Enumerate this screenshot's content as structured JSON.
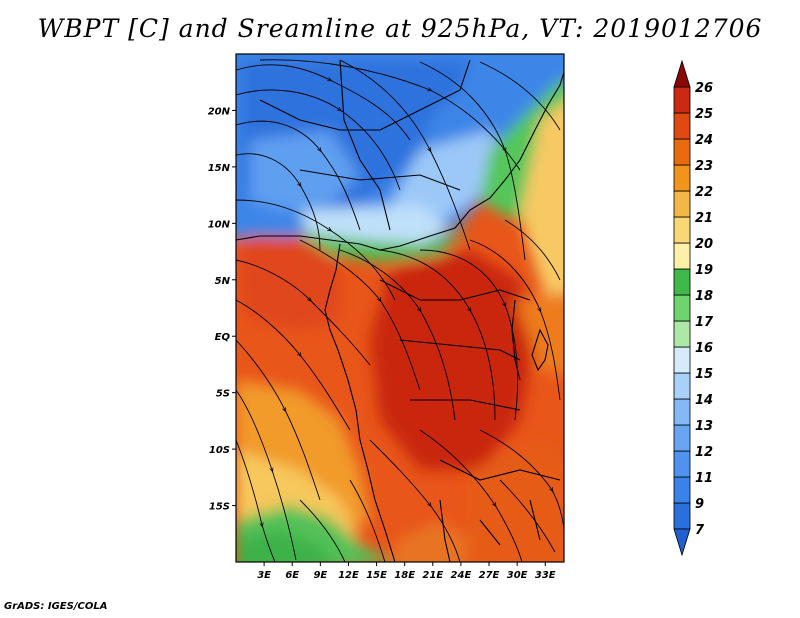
{
  "title": "WBPT [C] and Sreamline at 925hPa, VT: 2019012706",
  "credit": "GrADS: IGES/COLA",
  "map": {
    "lon_range": [
      0,
      35
    ],
    "lat_range": [
      -20,
      25
    ],
    "lon_ticks": [
      {
        "value": 3,
        "label": "3E"
      },
      {
        "value": 6,
        "label": "6E"
      },
      {
        "value": 9,
        "label": "9E"
      },
      {
        "value": 12,
        "label": "12E"
      },
      {
        "value": 15,
        "label": "15E"
      },
      {
        "value": 18,
        "label": "18E"
      },
      {
        "value": 21,
        "label": "21E"
      },
      {
        "value": 24,
        "label": "24E"
      },
      {
        "value": 27,
        "label": "27E"
      },
      {
        "value": 30,
        "label": "30E"
      },
      {
        "value": 33,
        "label": "33E"
      }
    ],
    "lat_ticks": [
      {
        "value": 20,
        "label": "20N"
      },
      {
        "value": 15,
        "label": "15N"
      },
      {
        "value": 10,
        "label": "10N"
      },
      {
        "value": 5,
        "label": "5N"
      },
      {
        "value": 0,
        "label": "EQ"
      },
      {
        "value": -5,
        "label": "5S"
      },
      {
        "value": -10,
        "label": "10S"
      },
      {
        "value": -15,
        "label": "15S"
      }
    ]
  },
  "colorbar": {
    "levels": [
      {
        "label": "7",
        "color": "#2a6fde"
      },
      {
        "label": "9",
        "color": "#3a82ea"
      },
      {
        "label": "11",
        "color": "#4f93ef"
      },
      {
        "label": "12",
        "color": "#68a6f3"
      },
      {
        "label": "13",
        "color": "#84b9f6"
      },
      {
        "label": "14",
        "color": "#a8d0f9"
      },
      {
        "label": "15",
        "color": "#d4ebfb"
      },
      {
        "label": "16",
        "color": "#aee8a6"
      },
      {
        "label": "17",
        "color": "#6fd36e"
      },
      {
        "label": "18",
        "color": "#3fb94a"
      },
      {
        "label": "19",
        "color": "#fdf0a8"
      },
      {
        "label": "20",
        "color": "#f9d676"
      },
      {
        "label": "21",
        "color": "#f5b648"
      },
      {
        "label": "22",
        "color": "#f1941b"
      },
      {
        "label": "23",
        "color": "#ea6a10"
      },
      {
        "label": "24",
        "color": "#e04a12"
      },
      {
        "label": "25",
        "color": "#cc2a10"
      },
      {
        "label": "26",
        "color": "#a6100c"
      }
    ],
    "below_color": "#1f5fd0",
    "above_color": "#8a0808"
  }
}
